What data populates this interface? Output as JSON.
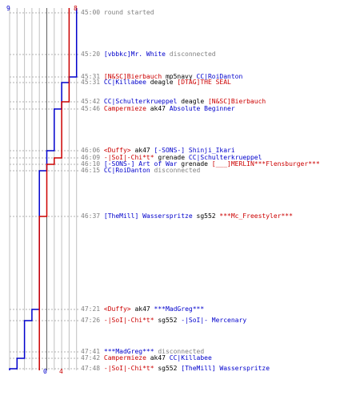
{
  "axis": {
    "top_left": "9",
    "top_right": "8",
    "bottom_left": "0",
    "bottom_right": "4"
  },
  "colors": {
    "team_blue": "#0000cc",
    "team_red": "#cc0000",
    "time": "#808080",
    "grid": "#c0c0c0"
  },
  "events": [
    {
      "time": "45:00",
      "parts": [
        {
          "t": "round started",
          "c": "sys"
        }
      ]
    },
    {
      "time": "45:20",
      "parts": [
        {
          "t": "[vbbkc]Mr. White",
          "c": "blue"
        },
        {
          "t": " disconnected",
          "c": "sys"
        }
      ]
    },
    {
      "time": "45:31",
      "parts": [
        {
          "t": "[N&SC]Bierbauch",
          "c": "red"
        },
        {
          "t": " mp5navy ",
          "c": "blk"
        },
        {
          "t": "CC|RoiDanton",
          "c": "blue"
        }
      ]
    },
    {
      "time": "45:31",
      "parts": [
        {
          "t": "CC|Killabee",
          "c": "blue"
        },
        {
          "t": " deagle ",
          "c": "blk"
        },
        {
          "t": "[DTAG]THE SEAL",
          "c": "red"
        }
      ]
    },
    {
      "time": "45:42",
      "parts": [
        {
          "t": "CC|Schulterkrueppel",
          "c": "blue"
        },
        {
          "t": " deagle ",
          "c": "blk"
        },
        {
          "t": "[N&SC]Bierbauch",
          "c": "red"
        }
      ]
    },
    {
      "time": "45:46",
      "parts": [
        {
          "t": "Campermieze",
          "c": "red"
        },
        {
          "t": " ak47 ",
          "c": "blk"
        },
        {
          "t": "Absolute Beginner",
          "c": "blue"
        }
      ]
    },
    {
      "time": "46:06",
      "parts": [
        {
          "t": "<Duffy>",
          "c": "red"
        },
        {
          "t": " ak47 ",
          "c": "blk"
        },
        {
          "t": "[-SONS-] Shinji_Ikari",
          "c": "blue"
        }
      ]
    },
    {
      "time": "46:09",
      "parts": [
        {
          "t": "-|SoI|-Chi*t*",
          "c": "red"
        },
        {
          "t": " grenade ",
          "c": "blk"
        },
        {
          "t": "CC|Schulterkrueppel",
          "c": "blue"
        }
      ]
    },
    {
      "time": "46:10",
      "parts": [
        {
          "t": "[-SONS-] Art of War",
          "c": "blue"
        },
        {
          "t": " grenade ",
          "c": "blk"
        },
        {
          "t": "[___]MERLIN***Flensburger***",
          "c": "red"
        }
      ]
    },
    {
      "time": "46:15",
      "parts": [
        {
          "t": "CC|RoiDanton",
          "c": "blue"
        },
        {
          "t": " disconnected",
          "c": "sys"
        }
      ]
    },
    {
      "time": "46:37",
      "parts": [
        {
          "t": "[TheMill] Wasserspritze",
          "c": "blue"
        },
        {
          "t": " sg552 ",
          "c": "blk"
        },
        {
          "t": "***Mc_Freestyler***",
          "c": "red"
        }
      ]
    },
    {
      "time": "47:21",
      "parts": [
        {
          "t": "<Duffy>",
          "c": "red"
        },
        {
          "t": " ak47 ",
          "c": "blk"
        },
        {
          "t": "***MadGreg***",
          "c": "blue"
        }
      ]
    },
    {
      "time": "47:26",
      "parts": [
        {
          "t": "-|SoI|-Chi*t*",
          "c": "red"
        },
        {
          "t": " sg552 ",
          "c": "blk"
        },
        {
          "t": "-|SoI|- Mercenary",
          "c": "blue"
        }
      ]
    },
    {
      "time": "47:41",
      "parts": [
        {
          "t": "***MadGreg***",
          "c": "blue"
        },
        {
          "t": " disconnected",
          "c": "sys"
        }
      ]
    },
    {
      "time": "47:42",
      "parts": [
        {
          "t": "Campermieze",
          "c": "red"
        },
        {
          "t": " ak47 ",
          "c": "blk"
        },
        {
          "t": "CC|Killabee",
          "c": "blue"
        }
      ]
    },
    {
      "time": "47:48",
      "parts": [
        {
          "t": "-|SoI|-Chi*t*",
          "c": "red"
        },
        {
          "t": " sg552 ",
          "c": "blk"
        },
        {
          "t": "[TheMill] Wasserspritze",
          "c": "blue"
        }
      ]
    }
  ],
  "blue_alive_counts": [
    9,
    9,
    8,
    7,
    7,
    6,
    5,
    5,
    5,
    4,
    4,
    3,
    2,
    2,
    1,
    0
  ],
  "red_alive_counts": [
    8,
    8,
    8,
    8,
    7,
    7,
    7,
    6,
    5,
    5,
    4,
    4,
    4,
    4,
    4,
    4
  ]
}
